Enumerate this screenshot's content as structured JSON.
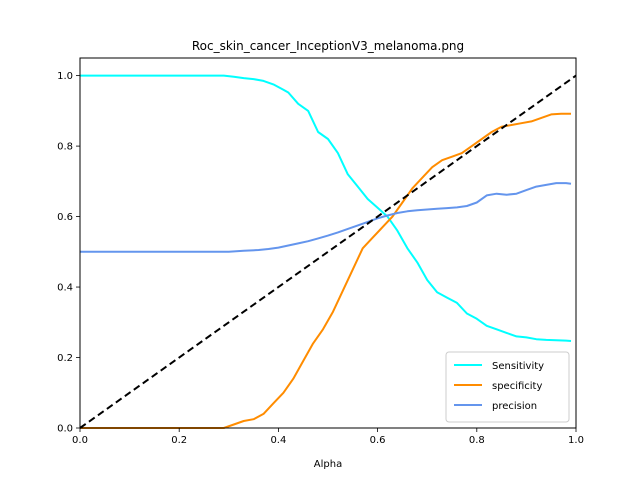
{
  "chart_data": {
    "type": "line",
    "title": "Roc_skin_cancer_InceptionV3_melanoma.png",
    "xlabel": "Alpha",
    "ylabel": "",
    "xlim": [
      0,
      1
    ],
    "ylim": [
      0,
      1.05
    ],
    "xticks": [
      "0.0",
      "0.2",
      "0.4",
      "0.6",
      "0.8",
      "1.0"
    ],
    "yticks": [
      "0.0",
      "0.2",
      "0.4",
      "0.6",
      "0.8",
      "1.0"
    ],
    "grid": false,
    "legend_position": "lower-right",
    "series": [
      {
        "name": "Sensitivity",
        "color": "#00ffff",
        "style": "solid",
        "x": [
          0.0,
          0.05,
          0.1,
          0.15,
          0.2,
          0.25,
          0.29,
          0.31,
          0.33,
          0.35,
          0.37,
          0.39,
          0.41,
          0.42,
          0.44,
          0.46,
          0.48,
          0.5,
          0.52,
          0.54,
          0.56,
          0.58,
          0.6,
          0.62,
          0.64,
          0.66,
          0.68,
          0.7,
          0.72,
          0.74,
          0.76,
          0.78,
          0.8,
          0.82,
          0.84,
          0.86,
          0.88,
          0.9,
          0.92,
          0.94,
          0.96,
          0.98,
          0.99
        ],
        "y": [
          1.0,
          1.0,
          1.0,
          1.0,
          1.0,
          1.0,
          1.0,
          0.997,
          0.993,
          0.99,
          0.985,
          0.975,
          0.96,
          0.952,
          0.92,
          0.9,
          0.84,
          0.82,
          0.78,
          0.72,
          0.685,
          0.65,
          0.625,
          0.6,
          0.56,
          0.51,
          0.47,
          0.42,
          0.385,
          0.37,
          0.355,
          0.325,
          0.31,
          0.29,
          0.28,
          0.27,
          0.26,
          0.257,
          0.252,
          0.25,
          0.249,
          0.248,
          0.247
        ]
      },
      {
        "name": "specificity",
        "color": "#ff8c00",
        "style": "solid",
        "x": [
          0.0,
          0.05,
          0.1,
          0.15,
          0.2,
          0.25,
          0.29,
          0.31,
          0.33,
          0.35,
          0.37,
          0.39,
          0.41,
          0.43,
          0.45,
          0.47,
          0.49,
          0.51,
          0.53,
          0.55,
          0.57,
          0.59,
          0.61,
          0.63,
          0.65,
          0.67,
          0.69,
          0.71,
          0.73,
          0.75,
          0.77,
          0.79,
          0.81,
          0.83,
          0.85,
          0.87,
          0.89,
          0.91,
          0.93,
          0.95,
          0.97,
          0.99
        ],
        "y": [
          0.0,
          0.0,
          0.0,
          0.0,
          0.0,
          0.0,
          0.0,
          0.01,
          0.02,
          0.025,
          0.04,
          0.07,
          0.1,
          0.14,
          0.19,
          0.24,
          0.28,
          0.33,
          0.39,
          0.45,
          0.51,
          0.54,
          0.57,
          0.6,
          0.64,
          0.68,
          0.71,
          0.74,
          0.76,
          0.77,
          0.78,
          0.8,
          0.82,
          0.84,
          0.855,
          0.86,
          0.865,
          0.87,
          0.88,
          0.89,
          0.892,
          0.892
        ]
      },
      {
        "name": "precision",
        "color": "#6495ed",
        "style": "solid",
        "x": [
          0.0,
          0.05,
          0.1,
          0.15,
          0.2,
          0.25,
          0.3,
          0.33,
          0.36,
          0.38,
          0.4,
          0.42,
          0.44,
          0.46,
          0.48,
          0.5,
          0.52,
          0.54,
          0.56,
          0.58,
          0.6,
          0.62,
          0.64,
          0.66,
          0.68,
          0.7,
          0.72,
          0.74,
          0.76,
          0.78,
          0.8,
          0.82,
          0.84,
          0.86,
          0.88,
          0.9,
          0.92,
          0.94,
          0.96,
          0.98,
          0.99
        ],
        "y": [
          0.5,
          0.5,
          0.5,
          0.5,
          0.5,
          0.5,
          0.5,
          0.503,
          0.505,
          0.508,
          0.512,
          0.518,
          0.524,
          0.53,
          0.538,
          0.546,
          0.555,
          0.565,
          0.575,
          0.585,
          0.595,
          0.603,
          0.61,
          0.615,
          0.618,
          0.62,
          0.622,
          0.624,
          0.626,
          0.63,
          0.64,
          0.66,
          0.665,
          0.662,
          0.665,
          0.675,
          0.685,
          0.69,
          0.695,
          0.695,
          0.693
        ]
      },
      {
        "name": "",
        "color": "#000000",
        "style": "dashed",
        "x": [
          0.0,
          1.0
        ],
        "y": [
          0.0,
          1.0
        ]
      }
    ]
  }
}
